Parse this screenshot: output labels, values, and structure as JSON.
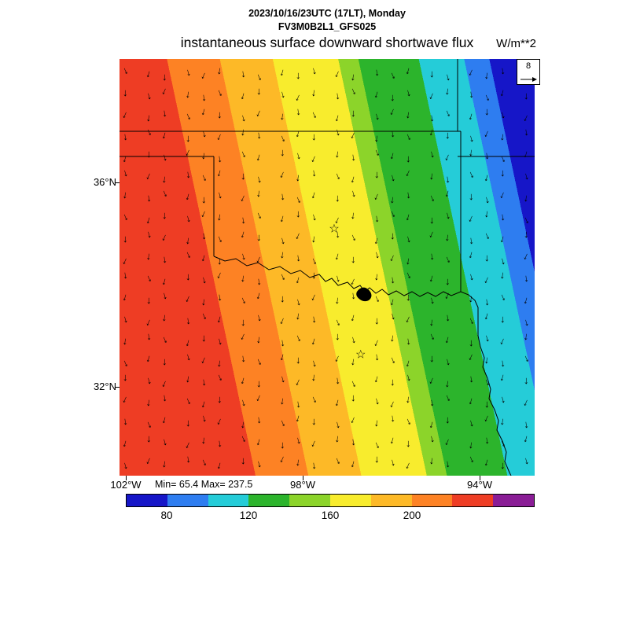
{
  "header": {
    "datetime": "2023/10/16/23UTC (17LT), Monday",
    "model": "FV3M0B2L1_GFS025",
    "title": "instantaneous surface downward shortwave flux",
    "units": "W/m**2"
  },
  "ref_vector": {
    "value": "8"
  },
  "axes": {
    "y_ticks": [
      "36°N",
      "32°N"
    ],
    "x_ticks": [
      "102°W",
      "98°W",
      "94°W"
    ]
  },
  "annotations": {
    "minmax": "Min= 65.4 Max= 237.5"
  },
  "colorbar": {
    "tick_labels": [
      "80",
      "120",
      "160",
      "200"
    ],
    "tick_boundaries": [
      1,
      3,
      5,
      7
    ],
    "segment_count": 10,
    "colors": [
      "#1616c8",
      "#2e7df0",
      "#25ccd8",
      "#2cb42c",
      "#8cd42a",
      "#f8ec2d",
      "#fdb927",
      "#fd8224",
      "#ee3d24",
      "#8a1d96"
    ]
  },
  "chart_data": {
    "type": "heatmap",
    "title": "instantaneous surface downward shortwave flux",
    "subtitle": "2023/10/16/23UTC (17LT), Monday",
    "model_run": "FV3M0B2L1_GFS025",
    "units": "W/m**2",
    "min": 65.4,
    "max": 237.5,
    "region": "Oklahoma / North Texas map panel",
    "x_ticks": [
      "102°W",
      "98°W",
      "94°W"
    ],
    "y_ticks": [
      "36°N",
      "32°N"
    ],
    "contour_levels": [
      80,
      100,
      120,
      140,
      160,
      180,
      200,
      220,
      240
    ],
    "palette_low_to_high": [
      "#1616c8",
      "#2e7df0",
      "#25ccd8",
      "#2cb42c",
      "#8cd42a",
      "#f8ec2d",
      "#fdb927",
      "#fd8224",
      "#ee3d24",
      "#8a1d96"
    ],
    "bands_west_to_east": [
      {
        "value_range": "220-237.5",
        "color": "#ee3d24",
        "extent_pct": [
          0,
          27
        ]
      },
      {
        "value_range": "200-220",
        "color": "#fd8224",
        "extent_pct": [
          27,
          37.5
        ]
      },
      {
        "value_range": "180-200",
        "color": "#fdb927",
        "extent_pct": [
          37.5,
          48
        ]
      },
      {
        "value_range": "160-180",
        "color": "#f8ec2d",
        "extent_pct": [
          48,
          61
        ]
      },
      {
        "value_range": "140-160",
        "color": "#8cd42a",
        "extent_pct": [
          61,
          65
        ]
      },
      {
        "value_range": "120-140",
        "color": "#2cb42c",
        "extent_pct": [
          65,
          77
        ]
      },
      {
        "value_range": "100-120",
        "color": "#25ccd8",
        "extent_pct": [
          77,
          86
        ]
      },
      {
        "value_range": "80-100",
        "color": "#2e7df0",
        "extent_pct": [
          86,
          91
        ]
      },
      {
        "value_range": "65.4-80",
        "color": "#1616c8",
        "extent_pct": [
          91,
          100
        ]
      }
    ],
    "vector_field": {
      "reference_magnitude": 8,
      "predominant_direction": "southward (arrows point downward with slight tilts)"
    },
    "markers": {
      "stars": [
        {
          "x_pct": 51.7,
          "y_pct": 40.8
        },
        {
          "x_pct": 58.1,
          "y_pct": 70.9
        }
      ]
    }
  }
}
